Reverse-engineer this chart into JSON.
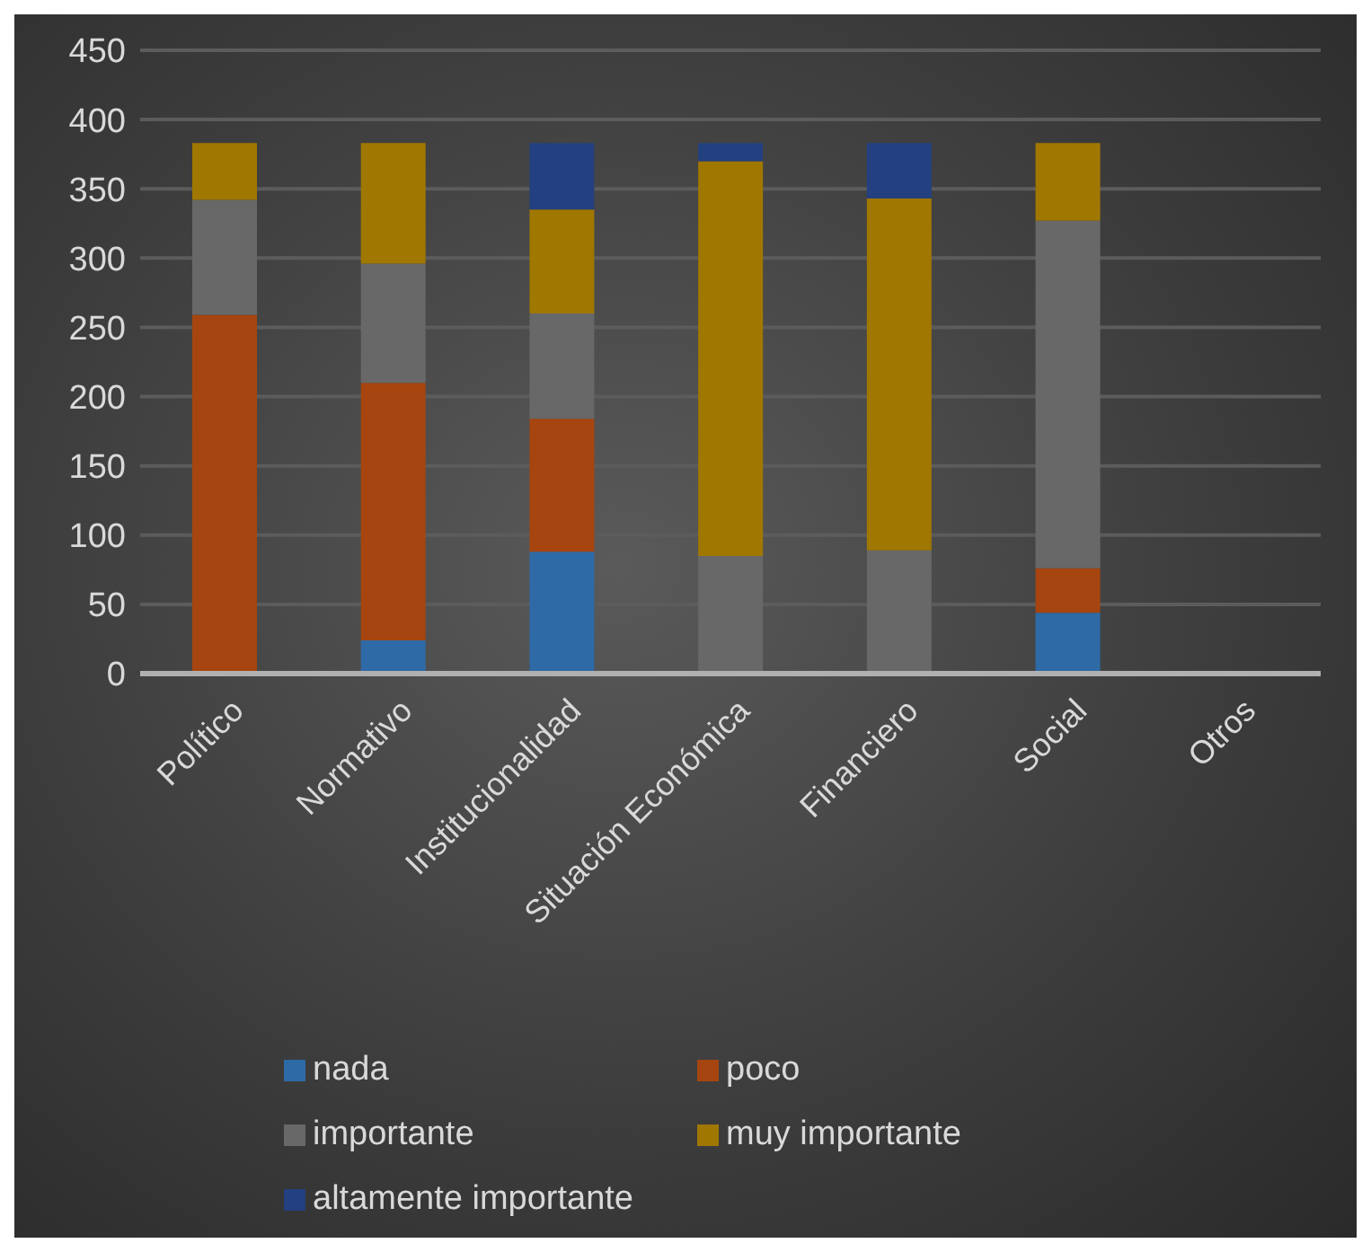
{
  "chart_data": {
    "type": "bar",
    "stacked": true,
    "categories": [
      "Político",
      "Normativo",
      "Institucionalidad",
      "Situación Económica",
      "Financiero",
      "Social",
      "Otros"
    ],
    "series": [
      {
        "name": "nada",
        "color": "#2e6aa6",
        "values": [
          0,
          24,
          88,
          0,
          0,
          44,
          0
        ]
      },
      {
        "name": "poco",
        "color": "#a64510",
        "values": [
          259,
          186,
          96,
          0,
          0,
          32,
          0
        ]
      },
      {
        "name": "importante",
        "color": "#686868",
        "values": [
          83,
          86,
          76,
          85,
          89,
          251,
          0
        ]
      },
      {
        "name": "muy importante",
        "color": "#a07700",
        "values": [
          41,
          87,
          75,
          285,
          254,
          56,
          0
        ]
      },
      {
        "name": "altamente importante",
        "color": "#234080",
        "values": [
          0,
          0,
          48,
          13,
          40,
          0,
          0
        ]
      }
    ],
    "ylim": [
      0,
      450
    ],
    "yticks": [
      0,
      50,
      100,
      150,
      200,
      250,
      300,
      350,
      400,
      450
    ],
    "grid": "y",
    "legend": "bottom"
  }
}
